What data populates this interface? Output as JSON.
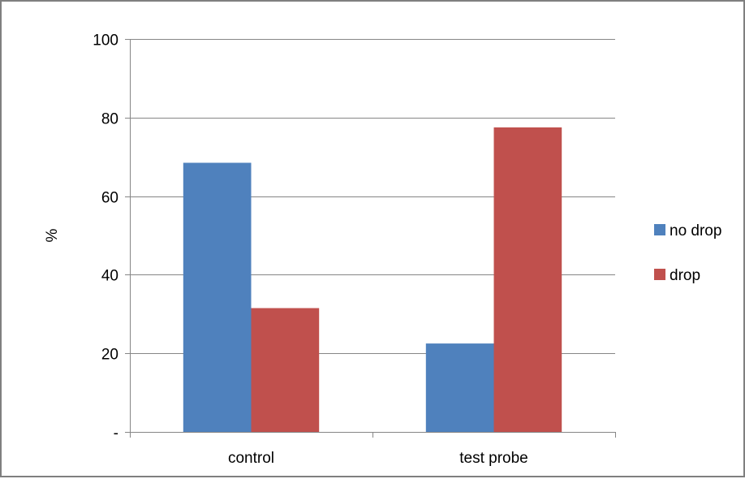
{
  "chart_data": {
    "type": "bar",
    "title": "",
    "xlabel": "",
    "ylabel": "%",
    "categories": [
      "control",
      "test probe"
    ],
    "series": [
      {
        "name": "no drop",
        "values": [
          68.5,
          22.5
        ],
        "color": "#4f81bd"
      },
      {
        "name": "drop",
        "values": [
          31.5,
          77.5
        ],
        "color": "#c0504d"
      }
    ],
    "ylim": [
      0,
      100
    ],
    "y_ticks": [
      0,
      20,
      40,
      60,
      80,
      100
    ],
    "y_tick_labels": [
      "-",
      "20",
      "40",
      "60",
      "80",
      "100"
    ],
    "grid": true,
    "legend_position": "right",
    "axis_color": "#868686",
    "grid_color": "#868686",
    "frame_color": "#7f7f7f"
  }
}
